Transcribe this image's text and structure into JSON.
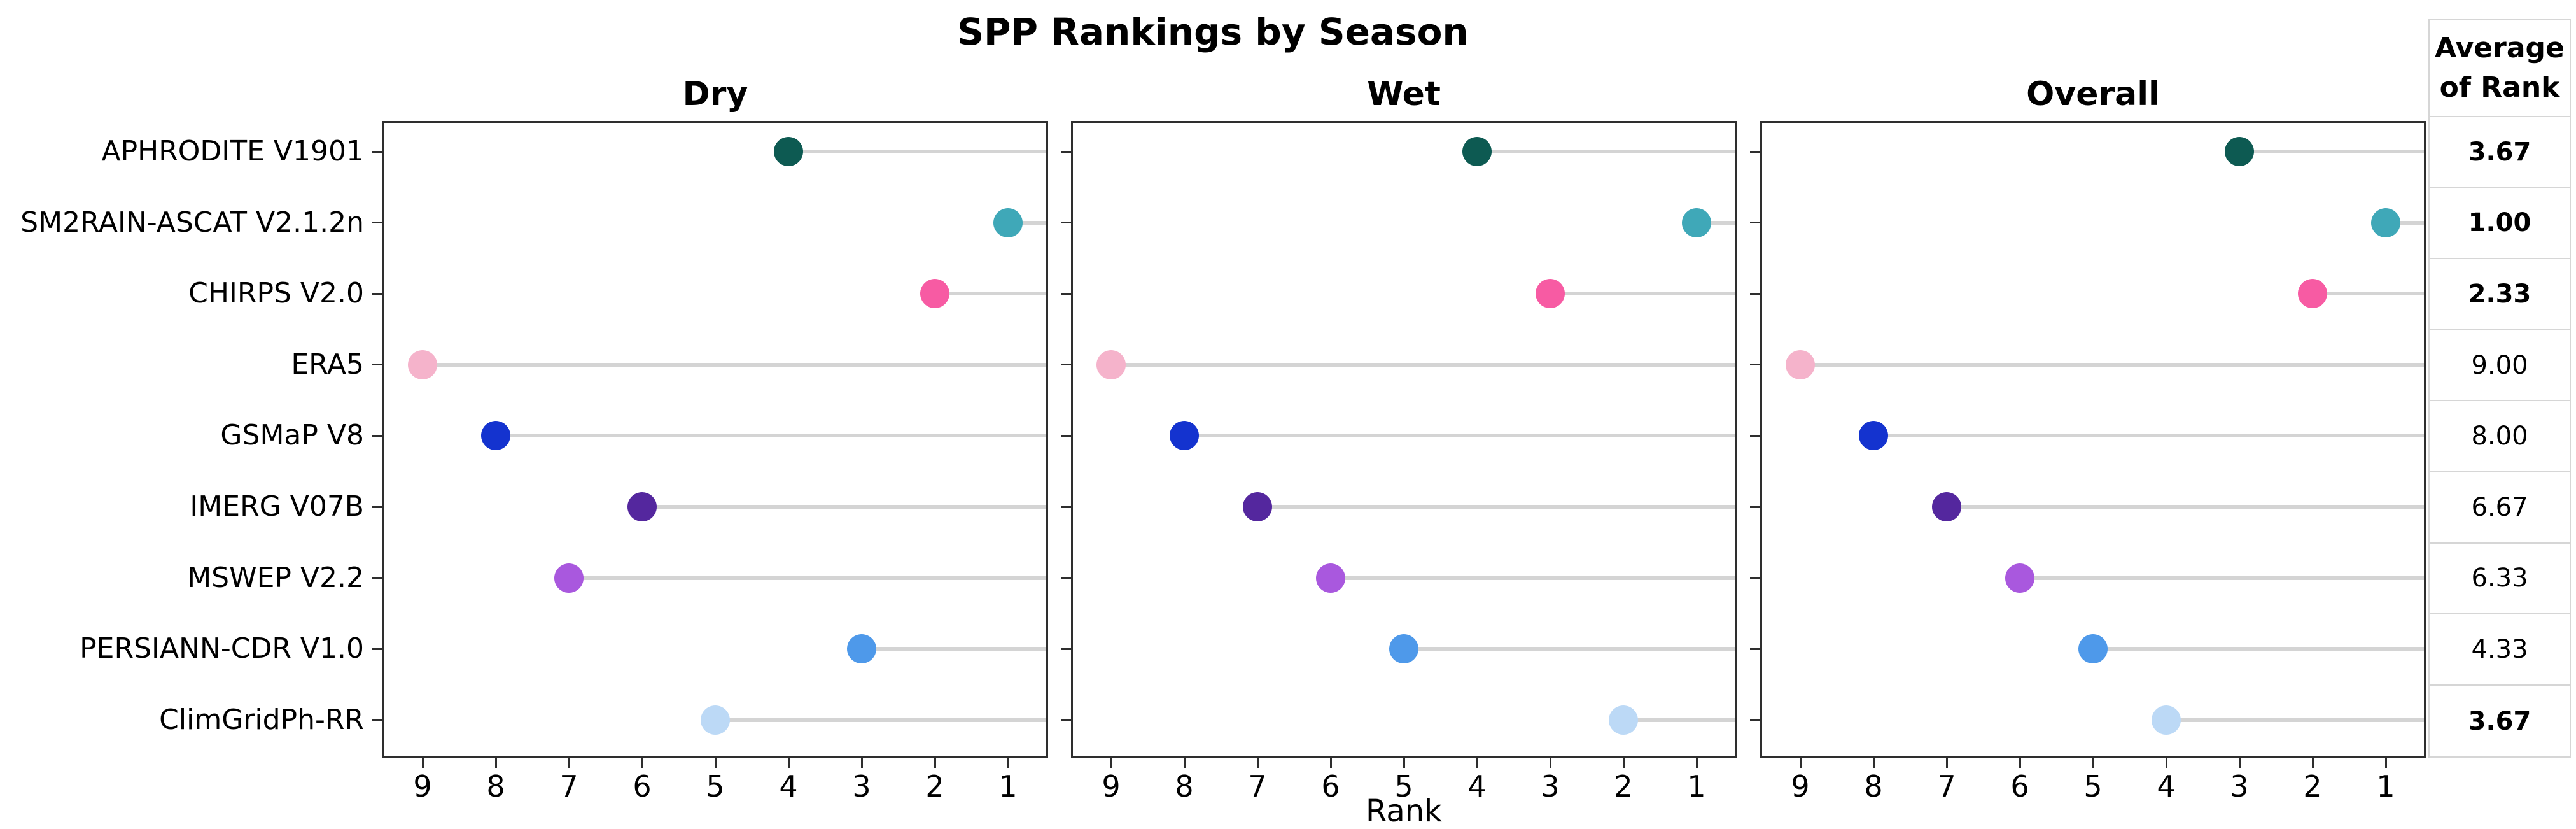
{
  "chart_data": {
    "type": "scatter",
    "subtype": "lollipop",
    "title": "SPP Rankings by Season",
    "xlabel": "Rank",
    "panels": [
      "Dry",
      "Wet",
      "Overall"
    ],
    "categories": [
      "APHRODITE V1901",
      "SM2RAIN-ASCAT V2.1.2n",
      "CHIRPS V2.0",
      "ERA5",
      "GSMaP V8",
      "IMERG V07B",
      "MSWEP V2.2",
      "PERSIANN-CDR V1.0",
      "ClimGridPh-RR"
    ],
    "series": [
      {
        "name": "Dry",
        "values": [
          4,
          1,
          2,
          9,
          8,
          6,
          7,
          3,
          5
        ]
      },
      {
        "name": "Wet",
        "values": [
          4,
          1,
          3,
          9,
          8,
          7,
          6,
          5,
          2
        ]
      },
      {
        "name": "Overall",
        "values": [
          3,
          1,
          2,
          9,
          8,
          7,
          6,
          5,
          4
        ]
      }
    ],
    "x_ticks": [
      9,
      8,
      7,
      6,
      5,
      4,
      3,
      2,
      1
    ],
    "x_axis_reversed": true,
    "xlim": [
      9.5,
      0.5
    ],
    "grid": false,
    "legend": "none",
    "point_colors": [
      "#0d5a52",
      "#3fa8b8",
      "#f75ba3",
      "#f5b3cb",
      "#1433cf",
      "#54279e",
      "#a958de",
      "#4e99ea",
      "#bcd9f6"
    ],
    "stem_color": "#d4d4d4",
    "average_table": {
      "header_line1": "Average",
      "header_line2": "of Rank",
      "values": [
        "3.67",
        "1.00",
        "2.33",
        "9.00",
        "8.00",
        "6.67",
        "6.33",
        "4.33",
        "3.67"
      ],
      "bold": [
        true,
        true,
        true,
        false,
        false,
        false,
        false,
        false,
        true
      ]
    }
  }
}
